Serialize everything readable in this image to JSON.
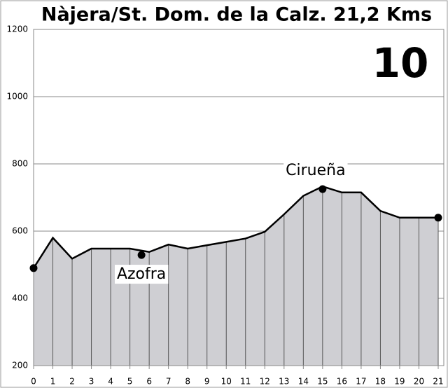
{
  "chart_data": {
    "type": "area",
    "title": "Nàjera/St. Dom. de la Calz. 21,2 Kms",
    "stage": "10",
    "x": [
      0,
      1,
      2,
      3,
      4,
      5,
      6,
      7,
      8,
      9,
      10,
      11,
      12,
      13,
      14,
      15,
      16,
      17,
      18,
      19,
      20,
      21
    ],
    "values": [
      490,
      580,
      518,
      548,
      548,
      548,
      538,
      560,
      548,
      558,
      568,
      578,
      598,
      650,
      705,
      733,
      715,
      715,
      660,
      640,
      640,
      640
    ],
    "color": "#cfcfd3",
    "markers": {
      "x": [
        0,
        5.6,
        15,
        21
      ],
      "values": [
        490,
        529,
        725,
        640
      ],
      "labels": [
        null,
        "Azofra",
        "Cirueña",
        null
      ]
    },
    "xlim": [
      0,
      21
    ],
    "xticks": [
      0,
      1,
      2,
      3,
      4,
      5,
      6,
      7,
      8,
      9,
      10,
      11,
      12,
      13,
      14,
      15,
      16,
      17,
      18,
      19,
      20,
      21
    ],
    "ylim": [
      200,
      1200
    ],
    "yticks": [
      200,
      400,
      600,
      800,
      1000,
      1200
    ],
    "grid": true
  }
}
